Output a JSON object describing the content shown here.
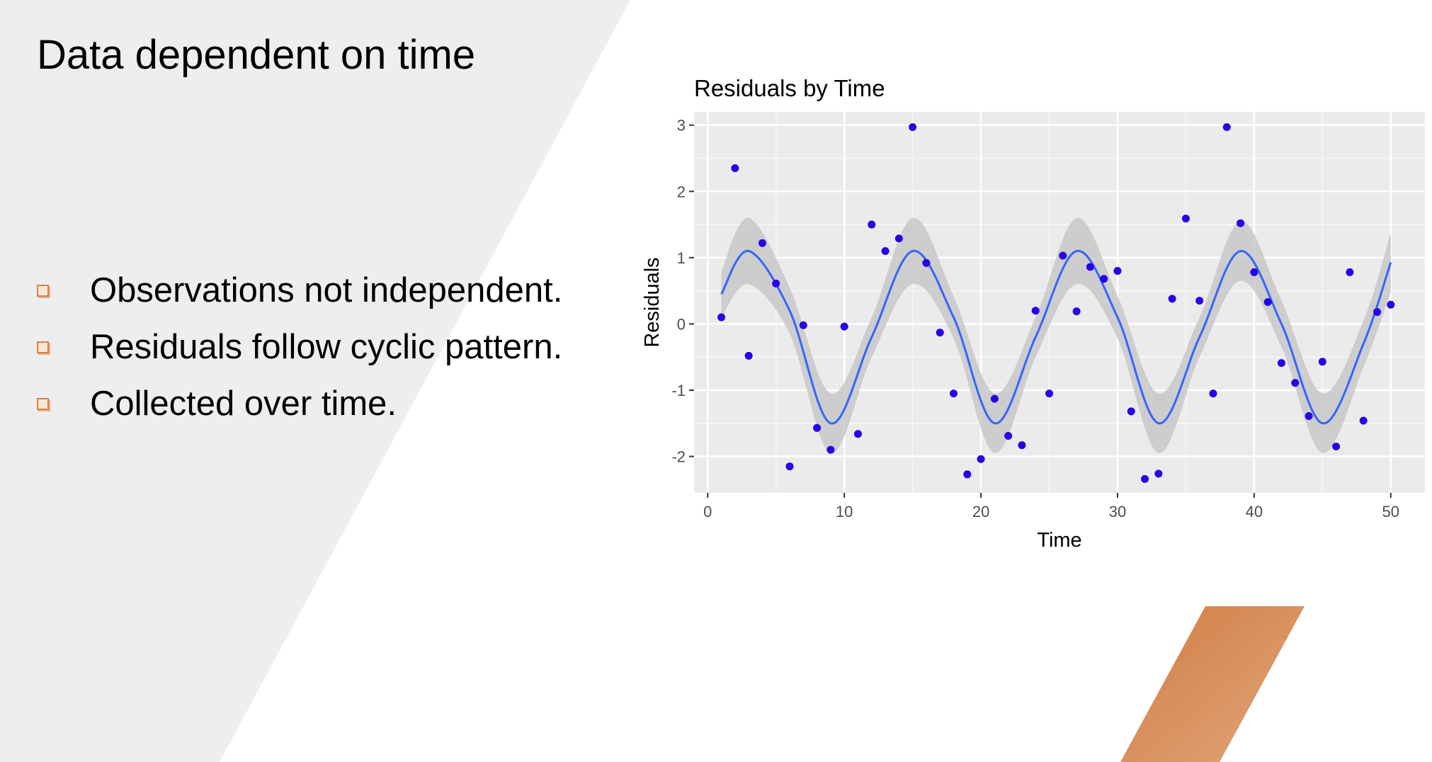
{
  "slide": {
    "title": "Data dependent on time",
    "bullets": [
      "Observations not independent.",
      "Residuals follow cyclic pattern.",
      "Collected over time."
    ]
  },
  "colors": {
    "background_panel": "#eeeeee",
    "accent_orange": "#d6874f",
    "bullet_marker": "#d2844e",
    "plot_panel": "#ebebeb",
    "grid_major": "#ffffff",
    "points": "#2600e6",
    "smooth_line": "#3366ff",
    "confidence_band": "#c8c8c8"
  },
  "chart_data": {
    "type": "scatter",
    "title": "Residuals by Time",
    "xlabel": "Time",
    "ylabel": "Residuals",
    "xlim": [
      -1,
      52.5
    ],
    "ylim": [
      -2.55,
      3.2
    ],
    "xticks": [
      0,
      10,
      20,
      30,
      40,
      50
    ],
    "yticks": [
      -2,
      -1,
      0,
      1,
      2,
      3
    ],
    "grid": true,
    "legend": "none",
    "points": {
      "x": [
        1,
        2,
        3,
        4,
        5,
        6,
        7,
        8,
        9,
        10,
        11,
        12,
        13,
        14,
        15,
        16,
        17,
        18,
        19,
        20,
        21,
        22,
        23,
        24,
        25,
        26,
        27,
        28,
        29,
        30,
        31,
        32,
        33,
        34,
        35,
        36,
        37,
        38,
        39,
        40,
        41,
        42,
        43,
        44,
        45,
        46,
        47,
        48,
        49,
        50
      ],
      "y": [
        0.1,
        2.35,
        -0.48,
        1.22,
        0.61,
        -2.15,
        -0.02,
        -1.57,
        -1.9,
        -0.04,
        -1.66,
        1.5,
        1.1,
        1.29,
        2.97,
        0.92,
        -0.13,
        -1.05,
        -2.27,
        -2.04,
        -1.13,
        -1.69,
        -1.83,
        0.2,
        -1.05,
        1.03,
        0.19,
        0.86,
        0.68,
        0.8,
        -1.32,
        -2.34,
        -2.26,
        0.38,
        1.59,
        0.35,
        -1.05,
        2.97,
        1.52,
        0.78,
        0.33,
        -0.59,
        -0.89,
        -1.39,
        -0.57,
        -1.85,
        0.78,
        -1.46,
        0.18,
        0.29
      ]
    },
    "smooth": {
      "type": "loess-like fitted curve with confidence band",
      "x": [
        1,
        3,
        6,
        9,
        12,
        15,
        18,
        21,
        24,
        27,
        30,
        33,
        36,
        39,
        42,
        45,
        48,
        50
      ],
      "y": [
        0.45,
        1.1,
        0.2,
        -1.5,
        -0.2,
        1.1,
        0.1,
        -1.5,
        -0.2,
        1.1,
        0.1,
        -1.5,
        -0.2,
        1.1,
        0.0,
        -1.5,
        -0.3,
        0.93
      ],
      "band_halfwidth": [
        0.35,
        0.5,
        0.35,
        0.45,
        0.3,
        0.5,
        0.32,
        0.45,
        0.3,
        0.5,
        0.32,
        0.45,
        0.3,
        0.45,
        0.35,
        0.45,
        0.35,
        0.45
      ]
    }
  }
}
